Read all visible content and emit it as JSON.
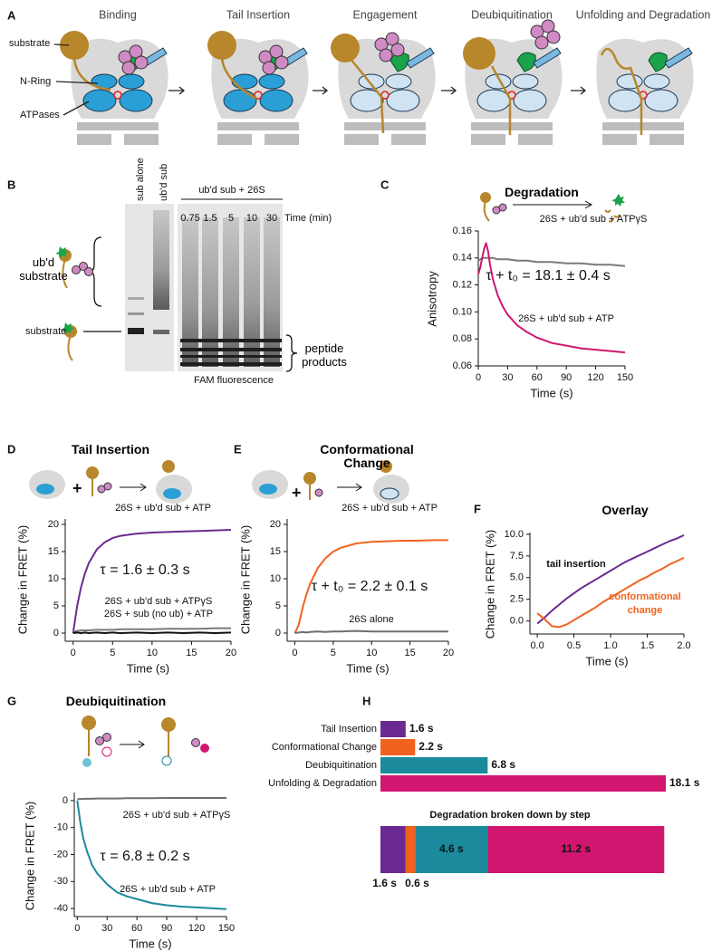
{
  "figure": {
    "panel_a": {
      "letter": "A",
      "steps": [
        "Binding",
        "Tail Insertion",
        "Engagement",
        "Deubiquitination",
        "Unfolding and Degradation"
      ],
      "labels": [
        "substrate",
        "N-Ring",
        "ATPases"
      ]
    },
    "panel_b": {
      "letter": "B",
      "lanes": [
        "sub alone",
        "ub'd sub"
      ],
      "group": "ub'd sub + 26S",
      "times": [
        0.75,
        1.5,
        5,
        10,
        30
      ],
      "time_label": "Time (min)",
      "species": [
        "ub'd substrate",
        "substrate"
      ],
      "products": "peptide products",
      "detection": "FAM fluorescence"
    }
  },
  "chart_data": [
    {
      "panel": "C",
      "type": "line",
      "title": "Degradation",
      "xlabel": "Time (s)",
      "ylabel": "Anisotropy",
      "annotation": "τ + t₀ = 18.1 ± 0.4 s",
      "x": [
        0,
        2,
        4,
        6,
        8,
        10,
        12,
        15,
        20,
        25,
        30,
        40,
        50,
        60,
        75,
        90,
        105,
        120,
        135,
        150
      ],
      "series": [
        {
          "name": "26S + ub'd sub + ATPγS",
          "color": "#7a7a7a",
          "values": [
            0.138,
            0.139,
            0.14,
            0.14,
            0.14,
            0.14,
            0.14,
            0.14,
            0.139,
            0.139,
            0.139,
            0.138,
            0.138,
            0.137,
            0.137,
            0.136,
            0.136,
            0.135,
            0.135,
            0.134
          ]
        },
        {
          "name": "26S + ub'd sub + ATP",
          "color": "#d1166f",
          "values": [
            0.128,
            0.133,
            0.14,
            0.147,
            0.151,
            0.145,
            0.135,
            0.124,
            0.112,
            0.104,
            0.098,
            0.09,
            0.085,
            0.081,
            0.077,
            0.075,
            0.073,
            0.072,
            0.071,
            0.07
          ]
        }
      ],
      "xlim": [
        0,
        150
      ],
      "ylim": [
        0.06,
        0.16
      ],
      "xticks": [
        0,
        30,
        60,
        90,
        120,
        150
      ],
      "yticks": [
        0.06,
        0.08,
        {
          "value": 0.1,
          "label": "0.10"
        },
        0.12,
        0.14,
        0.16
      ]
    },
    {
      "panel": "D",
      "type": "line",
      "title": "Tail Insertion",
      "xlabel": "Time (s)",
      "ylabel": "Change in FRET (%)",
      "annotation": "τ = 1.6 ± 0.3 s",
      "x": [
        0,
        0.5,
        1,
        1.5,
        2,
        3,
        4,
        5,
        6,
        8,
        10,
        12,
        14,
        16,
        18,
        20
      ],
      "series": [
        {
          "name": "26S + ub'd sub + ATP",
          "color": "#6b2a91",
          "values": [
            0,
            4.9,
            8.4,
            11.0,
            12.9,
            15.4,
            16.7,
            17.5,
            17.9,
            18.3,
            18.5,
            18.6,
            18.7,
            18.8,
            18.9,
            19.0
          ]
        },
        {
          "name": "26S + ub'd sub + ATPγS",
          "color": "#7a7a7a",
          "values": [
            0.3,
            0.4,
            0.5,
            0.5,
            0.5,
            0.6,
            0.6,
            0.6,
            0.7,
            0.7,
            0.7,
            0.8,
            0.8,
            0.8,
            0.9,
            0.9
          ]
        },
        {
          "name": "26S + sub  (no ub) + ATP",
          "color": "#111111",
          "values": [
            0,
            0.1,
            0,
            0.1,
            0,
            0.1,
            0,
            0.1,
            0,
            0.1,
            0,
            0.1,
            0,
            0.1,
            0,
            0.1
          ]
        }
      ],
      "xlim": [
        -1,
        20
      ],
      "ylim": [
        -1.5,
        21
      ],
      "xticks": [
        0,
        5,
        10,
        15,
        20
      ],
      "yticks": [
        0,
        5,
        10,
        15,
        20
      ]
    },
    {
      "panel": "E",
      "type": "line",
      "title": "Conformational Change",
      "xlabel": "Time (s)",
      "ylabel": "Change in FRET (%)",
      "annotation": "τ + t₀ = 2.2 ± 0.1 s",
      "x": [
        0,
        0.5,
        1,
        1.5,
        2,
        3,
        4,
        5,
        6,
        8,
        10,
        12,
        14,
        16,
        18,
        20
      ],
      "series": [
        {
          "name": "26S + ub'd sub + ATP",
          "color": "#f0631f",
          "values": [
            0,
            1.5,
            4.6,
            7.1,
            9.1,
            12.0,
            13.8,
            15.0,
            15.7,
            16.5,
            16.8,
            16.9,
            17.0,
            17.0,
            17.1,
            17.1
          ]
        },
        {
          "name": "26S alone",
          "color": "#6e6e6e",
          "values": [
            0,
            0.1,
            0.2,
            0.1,
            0.2,
            0.3,
            0.2,
            0.3,
            0.3,
            0.4,
            0.3,
            0.3,
            0.3,
            0.3,
            0.3,
            0.3
          ]
        }
      ],
      "xlim": [
        -1,
        20
      ],
      "ylim": [
        -1.5,
        21
      ],
      "xticks": [
        0,
        5,
        10,
        15,
        20
      ],
      "yticks": [
        0,
        5,
        10,
        15,
        20
      ]
    },
    {
      "panel": "F",
      "type": "line",
      "title": "Overlay",
      "xlabel": "Time (s)",
      "ylabel": "Change in FRET (%)",
      "x": [
        0,
        0.1,
        0.2,
        0.3,
        0.4,
        0.5,
        0.6,
        0.7,
        0.8,
        0.9,
        1,
        1.1,
        1.2,
        1.3,
        1.4,
        1.5,
        1.6,
        1.7,
        1.8,
        1.9,
        2
      ],
      "series": [
        {
          "name": "tail insertion",
          "color": "#6b2a91",
          "values": [
            -0.3,
            0.4,
            1.2,
            1.9,
            2.6,
            3.2,
            3.8,
            4.3,
            4.8,
            5.3,
            5.8,
            6.3,
            6.8,
            7.2,
            7.6,
            8.0,
            8.4,
            8.8,
            9.2,
            9.5,
            9.9
          ]
        },
        {
          "name": "conformational change",
          "color": "#f0631f",
          "values": [
            0.9,
            0.2,
            -0.6,
            -0.7,
            -0.4,
            0.1,
            0.6,
            1.1,
            1.6,
            2.2,
            2.7,
            3.2,
            3.7,
            4.2,
            4.7,
            5.1,
            5.6,
            6.0,
            6.5,
            6.9,
            7.3
          ]
        }
      ],
      "xlim": [
        -0.1,
        2
      ],
      "ylim": [
        -1.5,
        10.2
      ],
      "xticks": [
        {
          "value": 0,
          "label": "0.0"
        },
        0.5,
        {
          "value": 1,
          "label": "1.0"
        },
        1.5,
        {
          "value": 2,
          "label": "2.0"
        }
      ],
      "yticks": [
        {
          "value": 0,
          "label": "0.0"
        },
        2.5,
        {
          "value": 5,
          "label": "5.0"
        },
        7.5,
        {
          "value": 10,
          "label": "10.0"
        }
      ]
    },
    {
      "panel": "G",
      "type": "line",
      "title": "Deubiquitination",
      "xlabel": "Time (s)",
      "ylabel": "Change in FRET (%)",
      "annotation": "τ = 6.8 ± 0.2 s",
      "x": [
        0,
        3,
        6,
        10,
        15,
        20,
        30,
        40,
        50,
        60,
        75,
        90,
        105,
        120,
        135,
        150
      ],
      "series": [
        {
          "name": "26S + ub'd sub + ATPγS",
          "color": "#6e6e6e",
          "values": [
            0.5,
            0.6,
            0.6,
            0.7,
            0.7,
            0.8,
            0.8,
            0.8,
            0.9,
            0.9,
            0.9,
            1,
            1,
            1,
            1,
            1
          ]
        },
        {
          "name": "26S + ub'd sub + ATP",
          "color": "#1b8a9c",
          "values": [
            0,
            -8,
            -14,
            -19,
            -24,
            -27,
            -31,
            -34,
            -35.5,
            -36.5,
            -38,
            -38.8,
            -39.3,
            -39.6,
            -39.9,
            -40.2
          ]
        }
      ],
      "xlim": [
        -3,
        150
      ],
      "ylim": [
        -43,
        3
      ],
      "xticks": [
        0,
        30,
        60,
        90,
        120,
        150
      ],
      "yticks": [
        0,
        -10,
        -20,
        -30,
        -40
      ]
    },
    {
      "panel": "H",
      "type": "barh",
      "categories": [
        "Tail Insertion",
        "Conformational Change",
        "Deubiquitination",
        "Unfolding & Degradation"
      ],
      "values": [
        1.6,
        2.2,
        6.8,
        18.1
      ],
      "value_labels": [
        "1.6 s",
        "2.2 s",
        "6.8 s",
        "18.1 s"
      ],
      "colors": [
        "#6b2a91",
        "#f0631f",
        "#1b8a9c",
        "#d1166f"
      ],
      "breakdown": {
        "title": "Degradation broken down by step",
        "values": [
          1.6,
          0.6,
          4.6,
          11.2
        ],
        "value_labels": [
          "1.6 s",
          "0.6 s",
          "4.6 s",
          "11.2 s"
        ],
        "colors": [
          "#6b2a91",
          "#f0631f",
          "#1b8a9c",
          "#d1166f"
        ]
      }
    }
  ]
}
